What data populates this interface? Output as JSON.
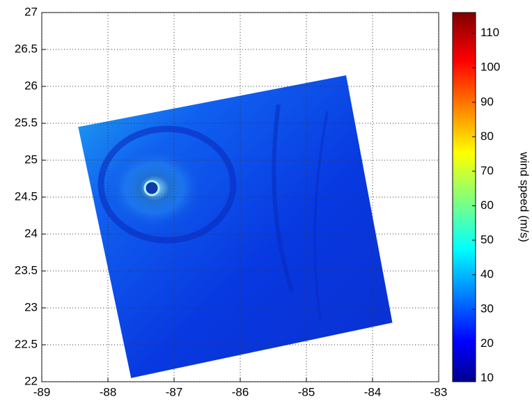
{
  "chart_data": {
    "type": "heatmap",
    "colorbar_label": "wind speed (m/s)",
    "xlim": [
      -89,
      -83
    ],
    "xticks": [
      -89,
      -88,
      -87,
      -86,
      -85,
      -84,
      -83
    ],
    "ylim": [
      22,
      27
    ],
    "yticks": [
      22,
      22.5,
      23,
      23.5,
      24,
      24.5,
      25,
      25.5,
      26,
      26.5,
      27
    ],
    "clim": [
      9,
      116
    ],
    "cticks": [
      10,
      20,
      30,
      40,
      50,
      60,
      70,
      80,
      90,
      100,
      110
    ],
    "colormap": "jet",
    "grid": true,
    "swath": {
      "x": [
        -88.45,
        -84.4,
        -83.7,
        -87.65
      ],
      "y": [
        25.45,
        26.15,
        22.8,
        22.05
      ]
    }
  }
}
